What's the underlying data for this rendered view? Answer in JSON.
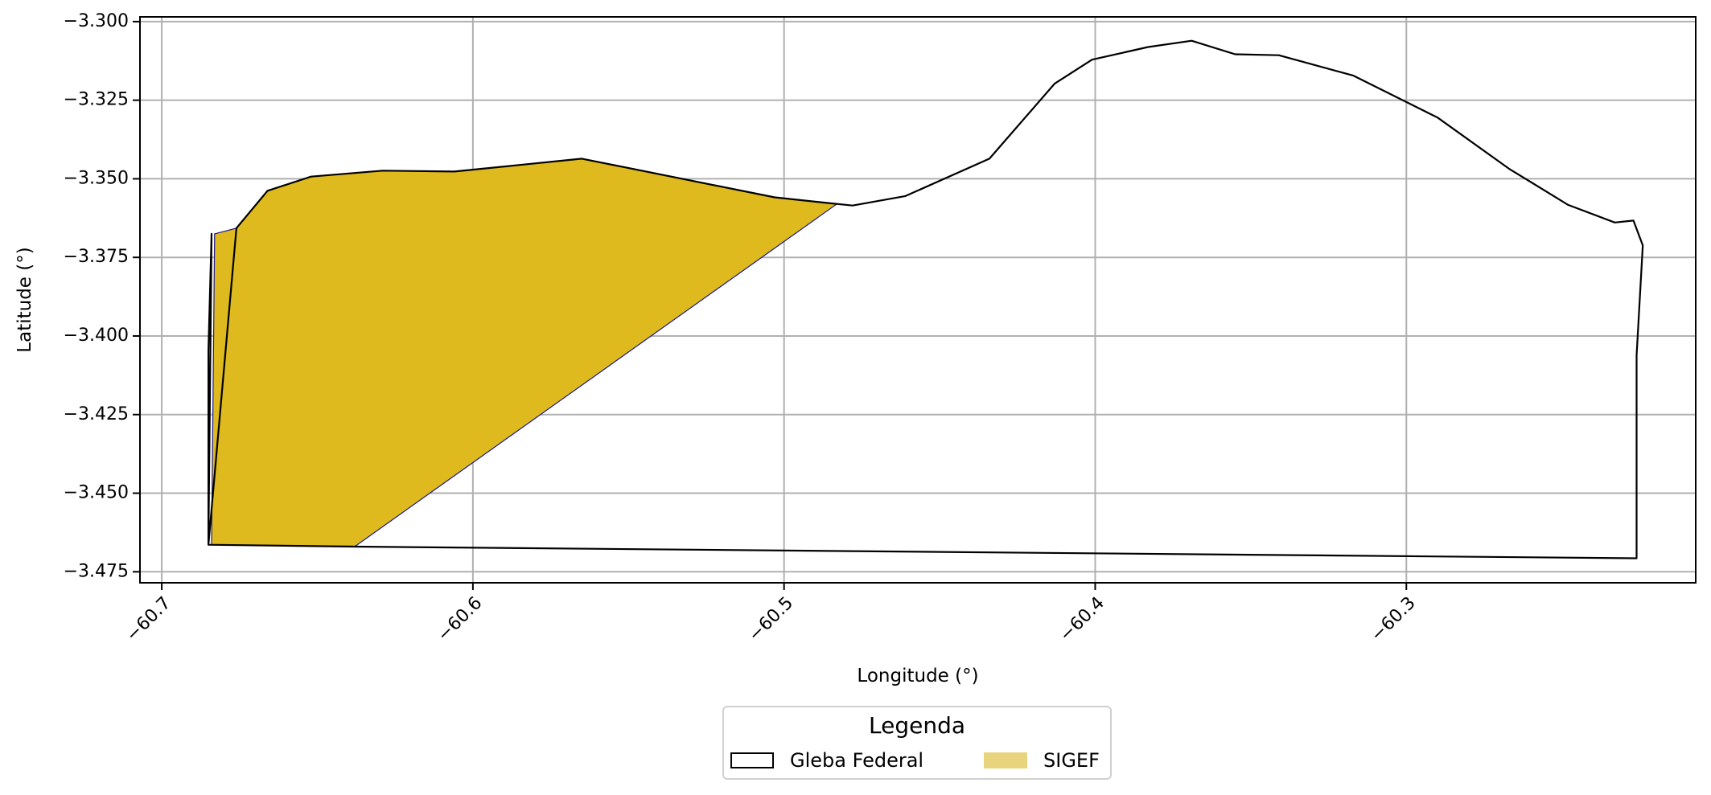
{
  "chart_data": {
    "type": "area",
    "xlabel": "Longitude (°)",
    "ylabel": "Latitude (°)",
    "xlim": [
      -60.707,
      -60.207
    ],
    "ylim": [
      -3.4785,
      -3.2985
    ],
    "xticks": [
      -60.7,
      -60.6,
      -60.5,
      -60.4,
      -60.3
    ],
    "xtick_labels": [
      "−60.7",
      "−60.6",
      "−60.5",
      "−60.4",
      "−60.3"
    ],
    "yticks": [
      -3.3,
      -3.325,
      -3.35,
      -3.375,
      -3.4,
      -3.425,
      -3.45,
      -3.475
    ],
    "ytick_labels": [
      "−3.300",
      "−3.325",
      "−3.350",
      "−3.375",
      "−3.400",
      "−3.425",
      "−3.450",
      "−3.475"
    ],
    "grid": true,
    "legend": {
      "title": "Legenda",
      "placement": "below plot, centered",
      "entries": [
        "Gleba Federal",
        "SIGEF"
      ]
    },
    "series": [
      {
        "name": "Gleba Federal",
        "style": "outline",
        "edge_color": "#000000",
        "fill_color": "none",
        "x": [
          -60.684,
          -60.685,
          -60.685,
          -60.676,
          -60.666,
          -60.652,
          -60.629,
          -60.606,
          -60.565,
          -60.503,
          -60.486,
          -60.478,
          -60.461,
          -60.434,
          -60.413,
          -60.401,
          -60.383,
          -60.369,
          -60.355,
          -60.341,
          -60.317,
          -60.29,
          -60.267,
          -60.248,
          -60.233,
          -60.227,
          -60.224,
          -60.226,
          -60.226,
          -60.638,
          -60.685
        ],
        "y": [
          -3.3675,
          -3.4045,
          -3.4664,
          -3.3657,
          -3.3538,
          -3.3493,
          -3.3474,
          -3.3477,
          -3.3436,
          -3.3559,
          -3.3577,
          -3.3585,
          -3.3555,
          -3.3436,
          -3.3197,
          -3.3121,
          -3.3081,
          -3.3061,
          -3.3104,
          -3.3107,
          -3.3172,
          -3.3305,
          -3.3468,
          -3.3583,
          -3.3639,
          -3.3633,
          -3.3712,
          -3.4062,
          -3.4707,
          -3.467,
          -3.4664
        ]
      },
      {
        "name": "SIGEF",
        "style": "filled",
        "fill_color": "#deba1f",
        "legend_color": "#e8d47c",
        "edge_color": "#1a1a8c",
        "x": [
          -60.683,
          -60.676,
          -60.666,
          -60.652,
          -60.629,
          -60.606,
          -60.565,
          -60.503,
          -60.486,
          -60.483,
          -60.638,
          -60.684,
          -60.683
        ],
        "y": [
          -3.3675,
          -3.3657,
          -3.3538,
          -3.3493,
          -3.3474,
          -3.3477,
          -3.3436,
          -3.3559,
          -3.3577,
          -3.358,
          -3.467,
          -3.4664,
          -3.3675
        ]
      }
    ]
  }
}
